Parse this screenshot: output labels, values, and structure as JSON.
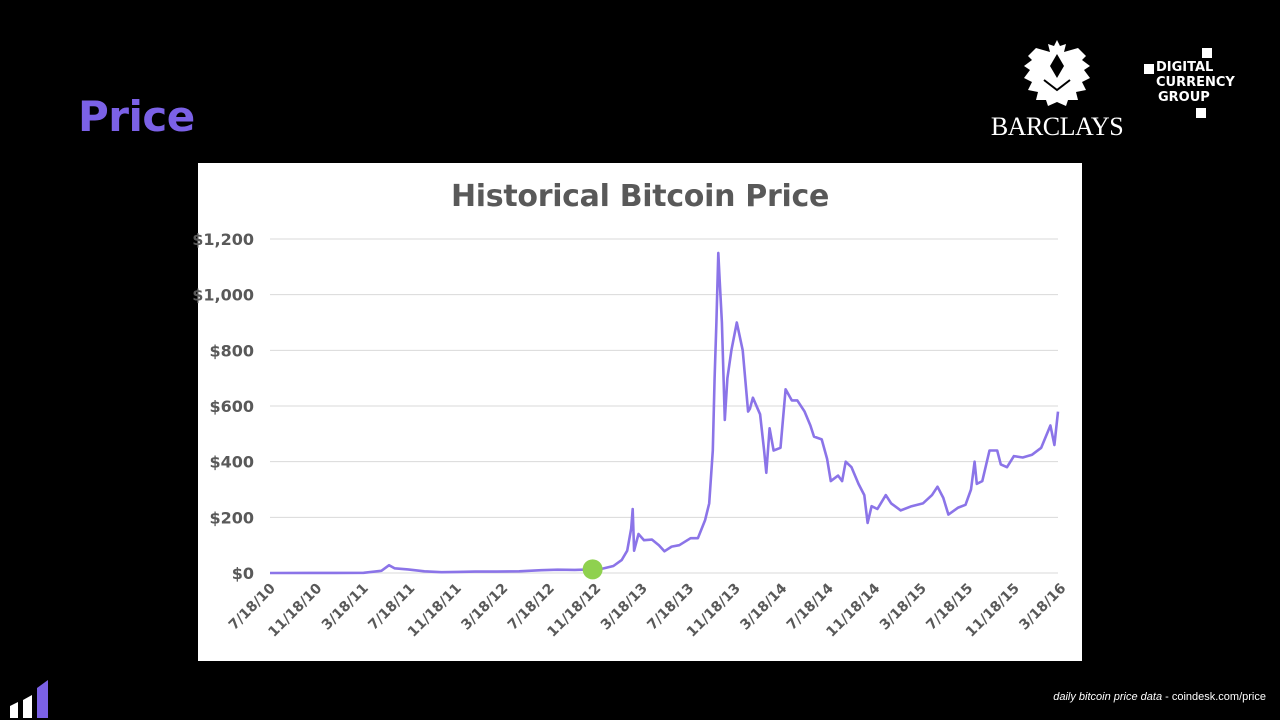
{
  "slide": {
    "title": "Price"
  },
  "logos": {
    "barclays": "BARCLAYS",
    "dcg_line1": "DIGITAL",
    "dcg_line2": "CURRENCY",
    "dcg_line3": "GROUP"
  },
  "footer": {
    "source_italic": "daily bitcoin price data",
    "source_rest": " - coindesk.com/price"
  },
  "colors": {
    "accent": "#7b61e6",
    "line": "#8b74e8",
    "marker": "#8fd14f",
    "axis_text": "#595959"
  },
  "chart_data": {
    "type": "line",
    "title": "Historical Bitcoin Price",
    "xlabel": "",
    "ylabel": "",
    "ylim": [
      0,
      1200
    ],
    "yticks": [
      "$0",
      "$200",
      "$400",
      "$600",
      "$800",
      "$1,000",
      "$1,200"
    ],
    "ytick_values": [
      0,
      200,
      400,
      600,
      800,
      1000,
      1200
    ],
    "xticks": [
      "7/18/10",
      "11/18/10",
      "3/18/11",
      "7/18/11",
      "11/18/11",
      "3/18/12",
      "7/18/12",
      "11/18/12",
      "3/18/13",
      "7/18/13",
      "11/18/13",
      "3/18/14",
      "7/18/14",
      "11/18/14",
      "3/18/15",
      "7/18/15",
      "11/18/15",
      "3/18/16"
    ],
    "xrange": [
      "2010-07-18",
      "2016-06-20"
    ],
    "grid": "horizontal",
    "legend": "none",
    "series": [
      {
        "x": [
          "2010-07-18",
          "2010-11-01",
          "2011-01-15",
          "2011-04-01",
          "2011-05-20",
          "2011-06-10",
          "2011-06-25",
          "2011-08-01",
          "2011-09-15",
          "2011-11-01",
          "2011-12-15",
          "2012-02-01",
          "2012-04-01",
          "2012-06-01",
          "2012-08-01",
          "2012-09-15",
          "2012-11-01",
          "2012-12-15",
          "2013-01-15",
          "2013-02-15",
          "2013-03-10",
          "2013-03-25",
          "2013-04-05",
          "2013-04-09",
          "2013-04-13",
          "2013-04-25",
          "2013-05-10",
          "2013-06-01",
          "2013-06-20",
          "2013-07-05",
          "2013-07-25",
          "2013-08-15",
          "2013-09-15",
          "2013-10-05",
          "2013-10-25",
          "2013-11-05",
          "2013-11-15",
          "2013-11-20",
          "2013-11-25",
          "2013-11-30",
          "2013-12-04",
          "2013-12-10",
          "2013-12-18",
          "2013-12-25",
          "2014-01-05",
          "2014-01-20",
          "2014-02-05",
          "2014-02-20",
          "2014-02-25",
          "2014-03-05",
          "2014-03-25",
          "2014-04-05",
          "2014-04-11",
          "2014-04-20",
          "2014-05-01",
          "2014-05-20",
          "2014-06-03",
          "2014-06-20",
          "2014-07-05",
          "2014-07-25",
          "2014-08-10",
          "2014-08-20",
          "2014-09-10",
          "2014-09-25",
          "2014-10-05",
          "2014-10-25",
          "2014-11-05",
          "2014-11-15",
          "2014-12-01",
          "2014-12-20",
          "2015-01-05",
          "2015-01-14",
          "2015-01-25",
          "2015-02-10",
          "2015-03-05",
          "2015-03-20",
          "2015-04-15",
          "2015-05-15",
          "2015-06-15",
          "2015-07-10",
          "2015-07-25",
          "2015-08-10",
          "2015-08-24",
          "2015-09-20",
          "2015-10-10",
          "2015-10-25",
          "2015-11-04",
          "2015-11-10",
          "2015-11-25",
          "2015-12-15",
          "2016-01-05",
          "2016-01-15",
          "2016-02-01",
          "2016-02-20",
          "2016-03-15",
          "2016-04-10",
          "2016-05-05",
          "2016-05-30",
          "2016-06-10",
          "2016-06-15",
          "2016-06-20"
        ],
        "values": [
          0.07,
          0.2,
          0.4,
          0.8,
          8,
          28,
          17,
          13,
          6,
          3,
          4,
          5,
          5,
          6,
          10,
          12,
          11,
          13,
          15,
          25,
          47,
          80,
          160,
          230,
          80,
          140,
          118,
          120,
          100,
          78,
          95,
          100,
          125,
          125,
          190,
          250,
          440,
          700,
          900,
          1150,
          1050,
          900,
          550,
          700,
          800,
          900,
          800,
          580,
          590,
          630,
          570,
          440,
          360,
          520,
          440,
          450,
          660,
          620,
          620,
          580,
          530,
          490,
          480,
          410,
          330,
          350,
          330,
          400,
          380,
          320,
          280,
          180,
          240,
          230,
          280,
          250,
          225,
          240,
          250,
          280,
          310,
          270,
          210,
          235,
          245,
          300,
          400,
          320,
          330,
          440,
          440,
          390,
          380,
          420,
          415,
          425,
          450,
          530,
          460,
          520,
          580
        ]
      }
    ],
    "marker": {
      "date": "2012-12-20",
      "value": 13
    }
  }
}
